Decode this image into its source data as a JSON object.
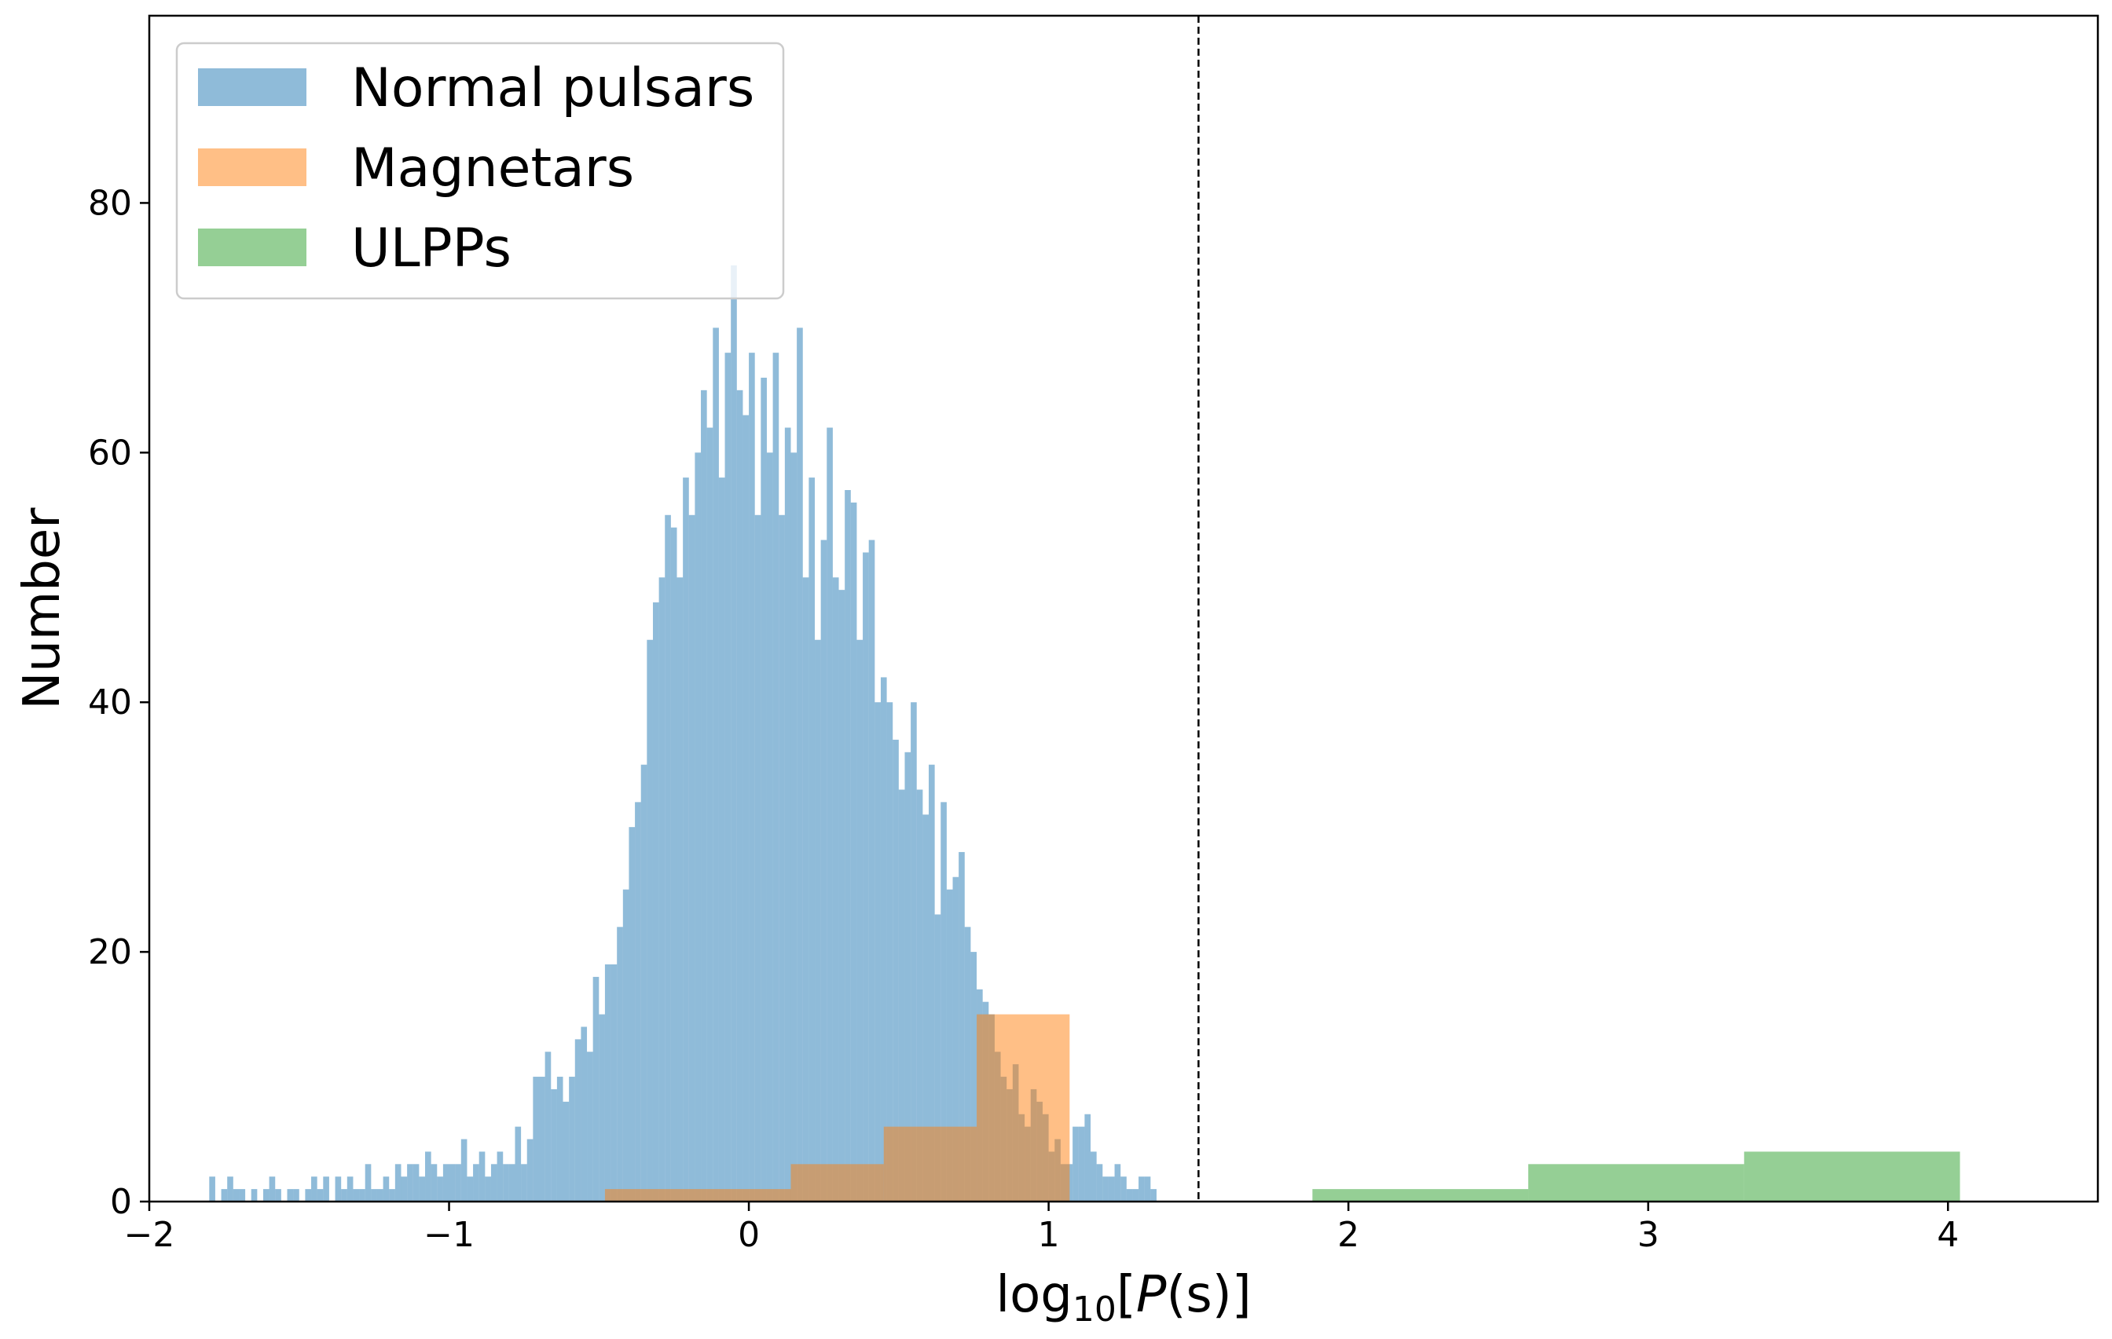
{
  "chart_data": {
    "type": "histogram",
    "xlabel_prefix": "log",
    "xlabel_sub": "10",
    "xlabel_open": "[",
    "xlabel_var": "P",
    "xlabel_close": "(s)]",
    "ylabel": "Number",
    "xlim": [
      -2.0,
      4.5
    ],
    "ylim": [
      0,
      95
    ],
    "xticks": [
      -2,
      -1,
      0,
      1,
      2,
      3,
      4
    ],
    "xtick_labels": [
      "−2",
      "−1",
      "0",
      "1",
      "2",
      "3",
      "4"
    ],
    "yticks": [
      0,
      20,
      40,
      60,
      80
    ],
    "ytick_labels": [
      "0",
      "20",
      "40",
      "60",
      "80"
    ],
    "grid": false,
    "legend_position": "top-left",
    "vline": {
      "x": 1.5,
      "style": "dashed",
      "color": "#000000"
    },
    "series": [
      {
        "name": "Normal pulsars",
        "color": "#1f77b4",
        "alpha": 0.5,
        "bin_start": -1.8,
        "bin_width": 0.02,
        "counts": [
          2,
          0,
          1,
          2,
          1,
          1,
          0,
          1,
          0,
          1,
          2,
          1,
          0,
          1,
          1,
          0,
          1,
          2,
          1,
          2,
          0,
          2,
          1,
          2,
          1,
          1,
          3,
          1,
          1,
          2,
          1,
          3,
          2,
          3,
          3,
          2,
          4,
          3,
          2,
          3,
          3,
          3,
          5,
          2,
          3,
          4,
          2,
          3,
          4,
          3,
          3,
          6,
          3,
          5,
          10,
          10,
          12,
          9,
          10,
          8,
          10,
          13,
          14,
          12,
          18,
          15,
          19,
          19,
          22,
          25,
          30,
          32,
          35,
          45,
          48,
          50,
          55,
          54,
          50,
          58,
          55,
          60,
          65,
          62,
          70,
          58,
          68,
          75,
          65,
          63,
          68,
          55,
          66,
          60,
          68,
          55,
          62,
          60,
          70,
          50,
          58,
          45,
          53,
          62,
          50,
          49,
          57,
          56,
          45,
          52,
          53,
          40,
          42,
          40,
          37,
          33,
          36,
          40,
          33,
          31,
          35,
          23,
          32,
          25,
          26,
          28,
          22,
          20,
          17,
          16,
          15,
          12,
          10,
          9,
          11,
          7,
          6,
          9,
          8,
          7,
          4,
          5,
          3,
          3,
          6,
          6,
          7,
          4,
          3,
          2,
          2,
          3,
          2,
          1,
          1,
          2,
          2,
          1
        ]
      },
      {
        "name": "Magnetars",
        "color": "#ff7f0e",
        "alpha": 0.5,
        "bin_edges": [
          -0.48,
          0.14,
          0.45,
          0.76,
          1.07
        ],
        "counts": [
          1,
          3,
          6,
          15
        ]
      },
      {
        "name": "ULPPs",
        "color": "#2ca02c",
        "alpha": 0.5,
        "bin_edges": [
          1.88,
          2.6,
          3.32,
          4.04
        ],
        "counts": [
          1,
          3,
          4
        ]
      }
    ]
  }
}
